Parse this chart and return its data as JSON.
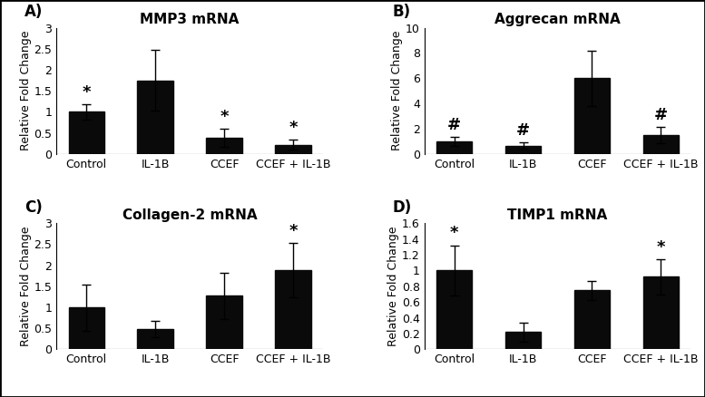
{
  "panels": [
    {
      "label": "A)",
      "title": "MMP3 mRNA",
      "categories": [
        "Control",
        "IL-1B",
        "CCEF",
        "CCEF + IL-1B"
      ],
      "values": [
        1.0,
        1.75,
        0.38,
        0.22
      ],
      "errors": [
        0.18,
        0.72,
        0.22,
        0.12
      ],
      "ylim": [
        0,
        3
      ],
      "yticks": [
        0,
        0.5,
        1.0,
        1.5,
        2.0,
        2.5,
        3.0
      ],
      "ytick_labels": [
        "0",
        "0.5",
        "1",
        "1.5",
        "2",
        "2.5",
        "3"
      ],
      "annotations": [
        "*",
        "",
        "*",
        "*"
      ]
    },
    {
      "label": "B)",
      "title": "Aggrecan mRNA",
      "categories": [
        "Control",
        "IL-1B",
        "CCEF",
        "CCEF + IL-1B"
      ],
      "values": [
        1.0,
        0.65,
        6.0,
        1.5
      ],
      "errors": [
        0.35,
        0.25,
        2.2,
        0.65
      ],
      "ylim": [
        0,
        10
      ],
      "yticks": [
        0,
        2,
        4,
        6,
        8,
        10
      ],
      "ytick_labels": [
        "0",
        "2",
        "4",
        "6",
        "8",
        "10"
      ],
      "annotations": [
        "#",
        "#",
        "",
        "#"
      ]
    },
    {
      "label": "C)",
      "title": "Collagen-2 mRNA",
      "categories": [
        "Control",
        "IL-1B",
        "CCEF",
        "CCEF + IL-1B"
      ],
      "values": [
        1.0,
        0.48,
        1.28,
        1.88
      ],
      "errors": [
        0.55,
        0.2,
        0.55,
        0.65
      ],
      "ylim": [
        0,
        3
      ],
      "yticks": [
        0,
        0.5,
        1.0,
        1.5,
        2.0,
        2.5,
        3.0
      ],
      "ytick_labels": [
        "0",
        "0.5",
        "1",
        "1.5",
        "2",
        "2.5",
        "3"
      ],
      "annotations": [
        "",
        "",
        "",
        "*"
      ]
    },
    {
      "label": "D)",
      "title": "TIMP1 mRNA",
      "categories": [
        "Control",
        "IL-1B",
        "CCEF",
        "CCEF + IL-1B"
      ],
      "values": [
        1.0,
        0.22,
        0.75,
        0.92
      ],
      "errors": [
        0.32,
        0.12,
        0.12,
        0.22
      ],
      "ylim": [
        0,
        1.6
      ],
      "yticks": [
        0,
        0.2,
        0.4,
        0.6,
        0.8,
        1.0,
        1.2,
        1.4,
        1.6
      ],
      "ytick_labels": [
        "0",
        "0.2",
        "0.4",
        "0.6",
        "0.8",
        "1",
        "1.2",
        "1.4",
        "1.6"
      ],
      "annotations": [
        "*",
        "",
        "",
        "*"
      ]
    }
  ],
  "bar_color": "#0a0a0a",
  "bar_width": 0.52,
  "ylabel": "Relative Fold Change",
  "background_color": "#ffffff",
  "title_fontsize": 11,
  "label_fontsize": 9,
  "tick_fontsize": 9,
  "ann_fontsize": 13,
  "panel_label_fontsize": 12
}
